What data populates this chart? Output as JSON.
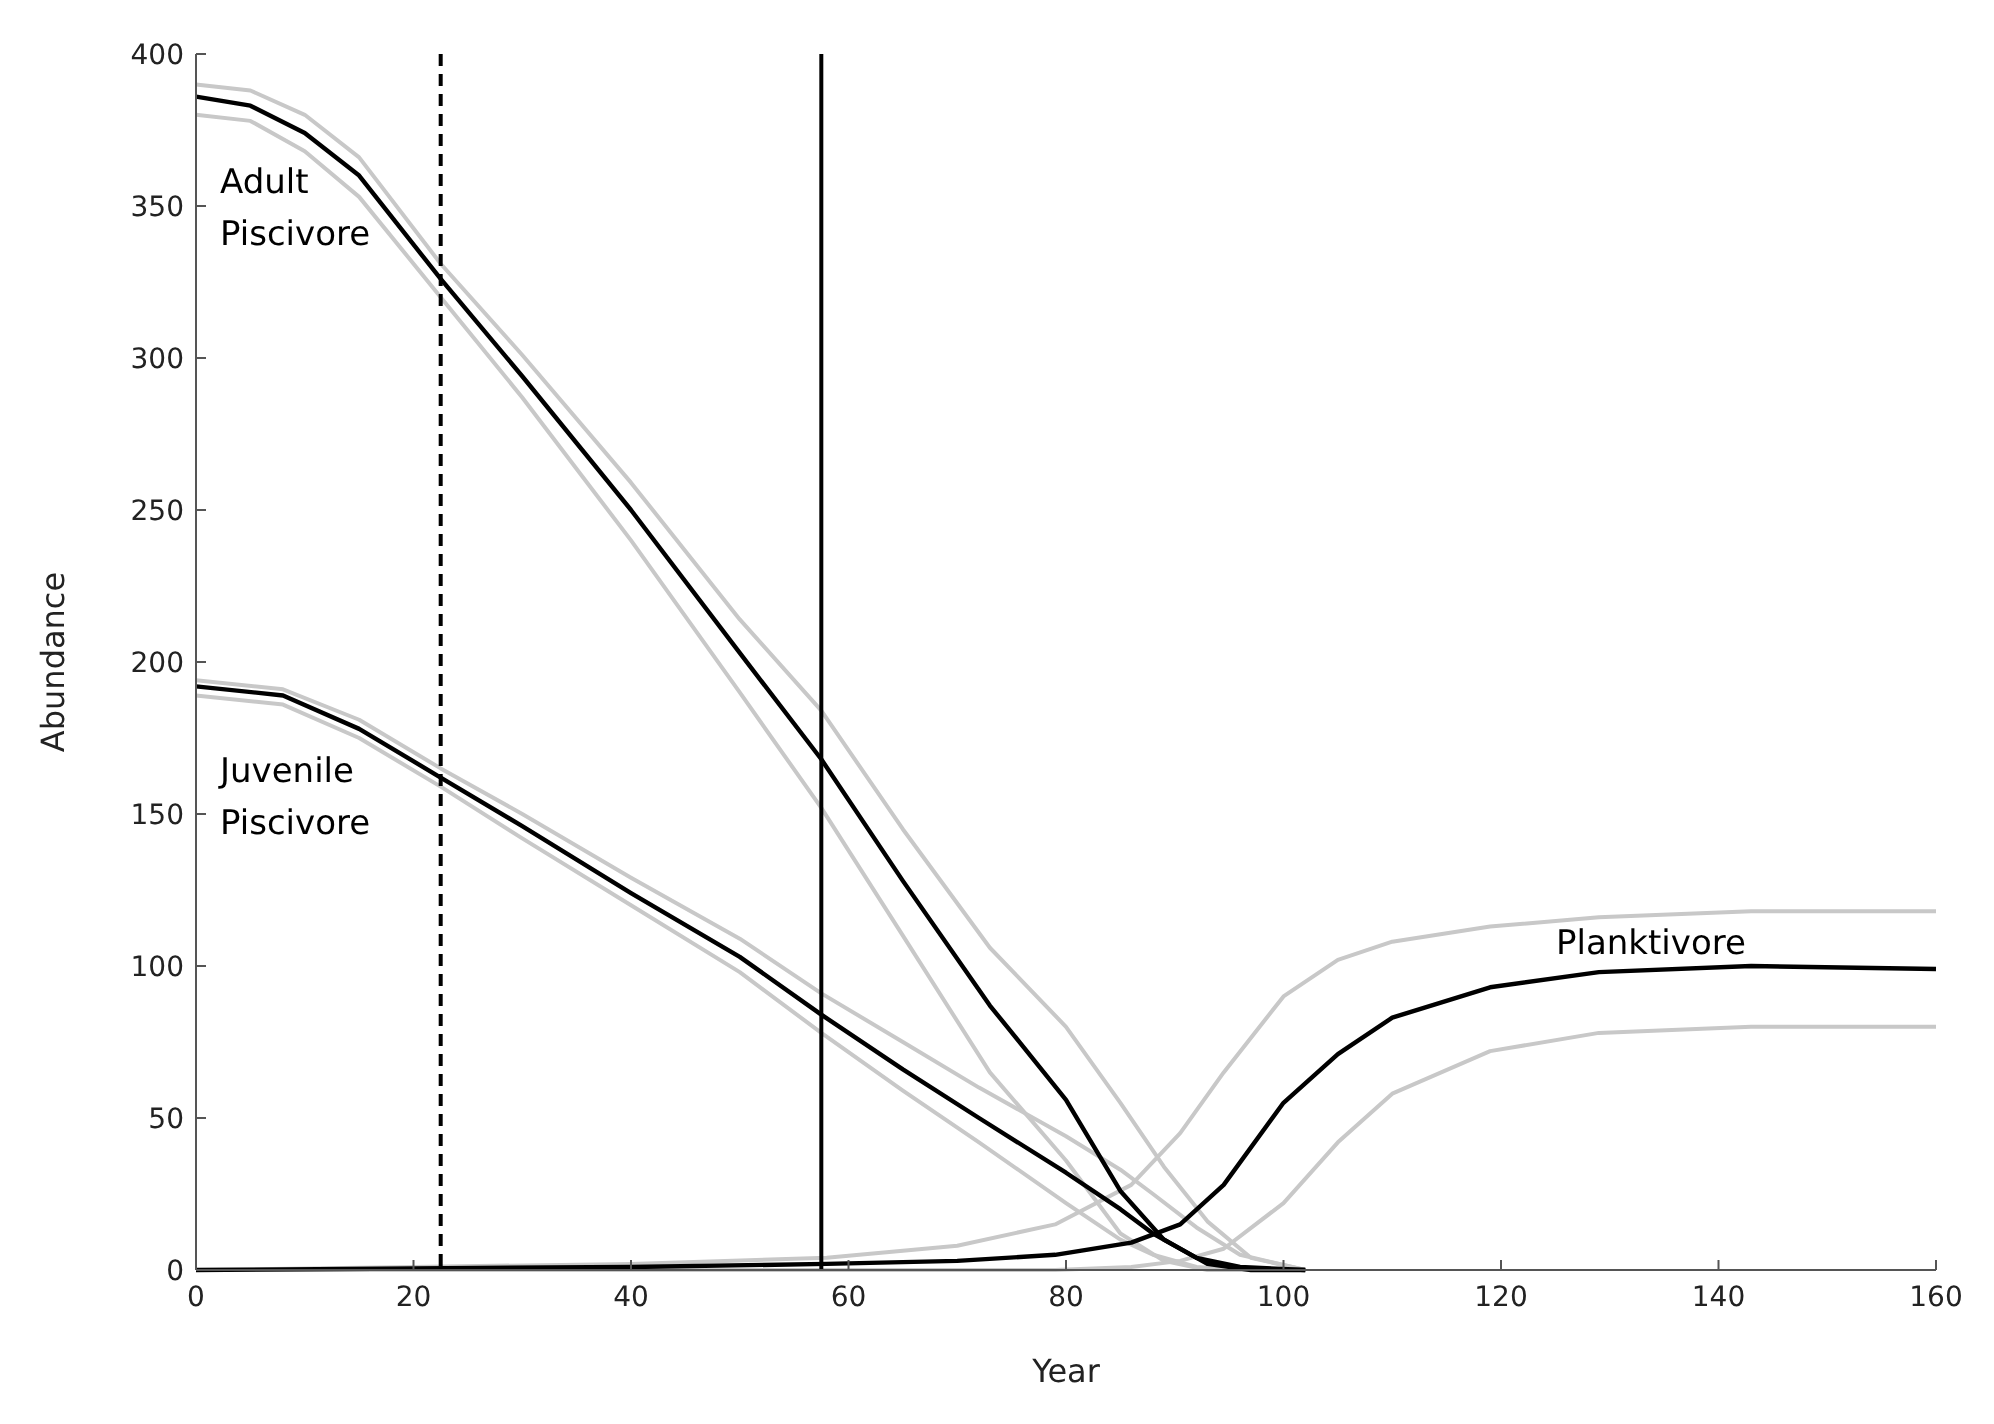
{
  "chart_data": {
    "type": "line",
    "xlabel": "Year",
    "ylabel": "Abundance",
    "xlim": [
      0,
      160
    ],
    "ylim": [
      0,
      400
    ],
    "xticks": [
      0,
      20,
      40,
      60,
      80,
      100,
      120,
      140,
      160
    ],
    "yticks": [
      0,
      50,
      100,
      150,
      200,
      250,
      300,
      350,
      400
    ],
    "grid": false,
    "legend": false,
    "marker": "none",
    "line_style": "solid",
    "series": [
      {
        "color": "#c8c8c8",
        "x": [
          0,
          5,
          10,
          15,
          22.5,
          30,
          40,
          50,
          57.5,
          65,
          73,
          80,
          85,
          89,
          93,
          97,
          102
        ],
        "values": [
          390,
          388,
          380,
          366,
          331,
          301,
          259,
          214,
          184,
          145,
          106,
          80,
          55,
          34,
          16,
          4,
          0
        ]
      },
      {
        "color": "#c8c8c8",
        "x": [
          0,
          5,
          10,
          15,
          22.5,
          30,
          40,
          50,
          57.5,
          65,
          73,
          80,
          85,
          89,
          93,
          97,
          102
        ],
        "values": [
          380,
          378,
          368,
          353,
          320,
          287,
          240,
          190,
          152,
          110,
          65,
          36,
          12,
          3,
          0,
          0,
          0
        ]
      },
      {
        "color": "#c8c8c8",
        "x": [
          0,
          8,
          15,
          22.5,
          30,
          40,
          50,
          57.5,
          65,
          72,
          80,
          85,
          88,
          92,
          96,
          102
        ],
        "values": [
          194,
          191,
          181,
          165,
          150,
          129,
          109,
          91,
          75,
          60,
          44,
          33,
          25,
          14,
          5,
          0
        ]
      },
      {
        "color": "#c8c8c8",
        "x": [
          0,
          8,
          15,
          22.5,
          30,
          40,
          50,
          57.5,
          65,
          72,
          80,
          85,
          88,
          92,
          96,
          102
        ],
        "values": [
          189,
          186,
          175,
          159,
          142,
          120,
          98,
          78,
          59,
          42,
          22,
          10,
          5,
          1,
          0,
          0
        ]
      },
      {
        "color": "#c8c8c8",
        "x": [
          0,
          20,
          40,
          58,
          70,
          79,
          86,
          90.5,
          94.5,
          100,
          105,
          110,
          119,
          129,
          143,
          160
        ],
        "values": [
          0,
          1,
          2,
          4,
          8,
          15,
          28,
          45,
          65,
          90,
          102,
          108,
          113,
          116,
          118,
          118
        ]
      },
      {
        "color": "#c8c8c8",
        "x": [
          0,
          20,
          40,
          58,
          70,
          79,
          86,
          90.5,
          94.5,
          100,
          105,
          110,
          119,
          129,
          143,
          160
        ],
        "values": [
          0,
          0,
          0,
          0,
          0,
          0,
          1,
          3,
          7,
          22,
          42,
          58,
          72,
          78,
          80,
          80
        ]
      },
      {
        "name": "Adult Piscivore",
        "color": "#000000",
        "x": [
          0,
          5,
          10,
          15,
          22.5,
          30,
          40,
          50,
          57.5,
          65,
          73,
          80,
          85,
          89,
          93,
          97,
          102
        ],
        "values": [
          386,
          383,
          374,
          360,
          326,
          294,
          250,
          203,
          168,
          128,
          87,
          56,
          26,
          10,
          2,
          0,
          0
        ]
      },
      {
        "name": "Juvenile Piscivore",
        "color": "#000000",
        "x": [
          0,
          8,
          15,
          22.5,
          30,
          40,
          50,
          57.5,
          65,
          72,
          80,
          85,
          88,
          92,
          96,
          102
        ],
        "values": [
          192,
          189,
          178,
          162,
          146,
          124,
          103,
          84,
          66,
          50,
          32,
          20,
          12,
          4,
          1,
          0
        ]
      },
      {
        "name": "Planktivore",
        "color": "#000000",
        "x": [
          0,
          20,
          40,
          58,
          70,
          79,
          86,
          90.5,
          94.5,
          100,
          105,
          110,
          119,
          129,
          143,
          160
        ],
        "values": [
          0,
          0.5,
          1,
          2,
          3,
          5,
          9,
          15,
          28,
          55,
          71,
          83,
          93,
          98,
          100,
          99
        ]
      }
    ],
    "ref_lines": [
      {
        "axis": "x",
        "value": 22.5,
        "color": "#000000",
        "line_style": "dashed"
      },
      {
        "axis": "x",
        "value": 57.5,
        "color": "#000000",
        "line_style": "solid"
      }
    ]
  }
}
